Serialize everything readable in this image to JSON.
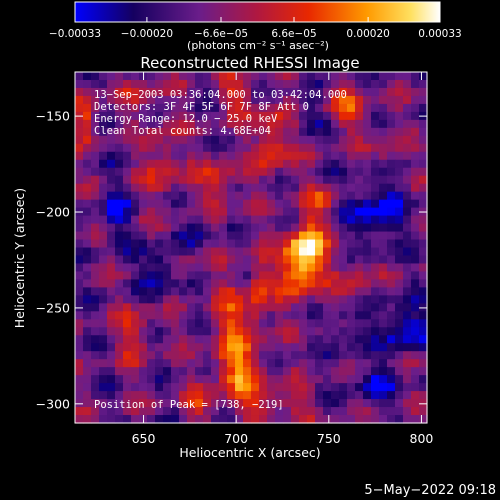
{
  "chart_data": {
    "type": "heatmap",
    "title": "Reconstructed RHESSI Image",
    "xlabel": "Heliocentric X (arcsec)",
    "ylabel": "Heliocentric Y (arcsec)",
    "xlim": [
      613,
      803
    ],
    "ylim": [
      -310,
      -127
    ],
    "x_ticks": [
      650,
      700,
      750,
      800
    ],
    "y_ticks": [
      -150,
      -200,
      -250,
      -300
    ],
    "x_tick_labels": [
      "650",
      "700",
      "750",
      "800"
    ],
    "y_tick_labels": [
      "−150",
      "−200",
      "−250",
      "−300"
    ],
    "colorbar": {
      "range": [
        -0.00033,
        0.00033
      ],
      "ticks": [
        -0.00033,
        -0.0002,
        -6.6e-05,
        6.6e-05,
        0.0002,
        0.00033
      ],
      "tick_labels": [
        "−0.00033",
        "−0.00020",
        "−6.6e−05",
        "6.6e−05",
        "0.00020",
        "0.00033"
      ],
      "unit_label": "(photons cm⁻² s⁻¹ asec⁻²)",
      "colors": [
        "#0000ff",
        "#200040",
        "#6a1d8a",
        "#c0203a",
        "#ff4d00",
        "#ffa500",
        "#ffffff"
      ]
    },
    "annotations": [
      "13−Sep−2003 03:36:04.000 to 03:42:04.000",
      "Detectors: 3F 4F 5F 6F 7F 8F  Att 0",
      "Energy Range: 12.0 − 25.0 keV",
      "Clean     Total counts: 4.68E+04",
      "Position of Peak = [738, −219]"
    ],
    "peak": [
      738,
      -219
    ]
  },
  "footer": {
    "timestamp": "5−May−2022 09:18"
  }
}
